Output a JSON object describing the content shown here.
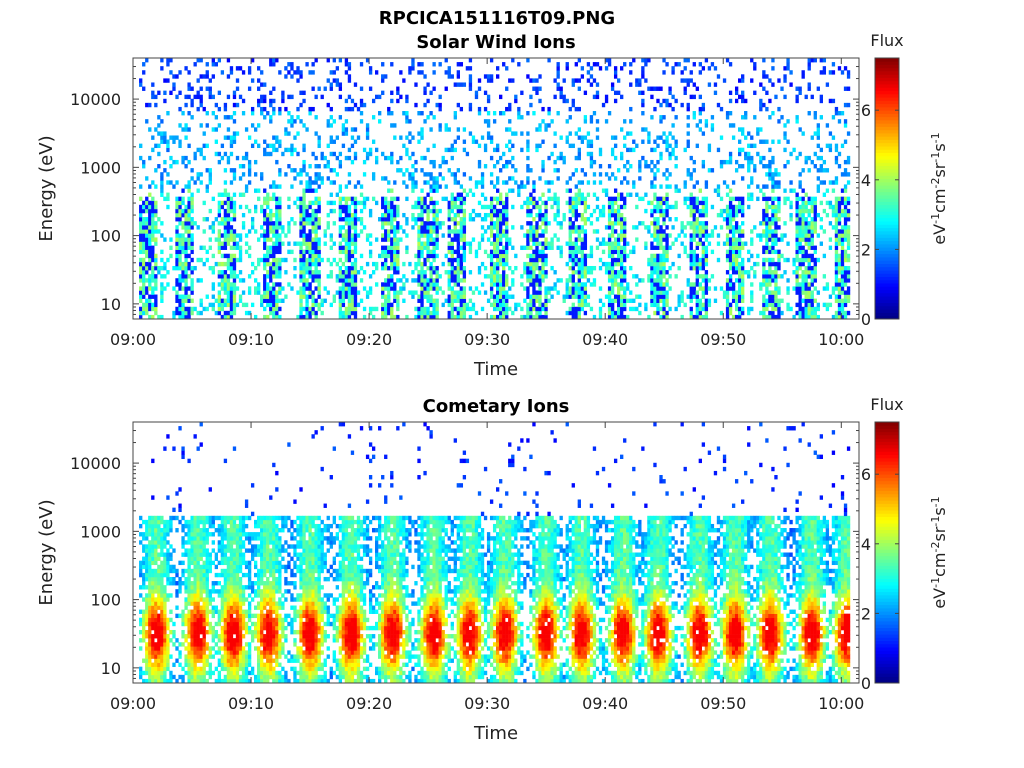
{
  "title": "RPCICA151116T09.PNG",
  "chart_data": [
    {
      "type": "heatmap",
      "title": "Solar Wind Ions",
      "xlabel": "Time",
      "ylabel": "Energy (eV)",
      "x_range": [
        "09:00",
        "10:01"
      ],
      "x_ticks": [
        "09:00",
        "09:10",
        "09:20",
        "09:30",
        "09:40",
        "09:50",
        "10:00"
      ],
      "y_scale": "log",
      "y_range": [
        6,
        40000
      ],
      "y_ticks": [
        "10",
        "100",
        "1000",
        "10000"
      ],
      "colorbar": {
        "title": "Flux",
        "label": "eV-1cm-2sr-1s-1",
        "range": [
          0,
          7.5
        ],
        "ticks": [
          "0",
          "2",
          "4",
          "6"
        ]
      },
      "colormap": "jet",
      "pulse_times_min": [
        1.3,
        4.3,
        8.0,
        11.8,
        15.0,
        18.2,
        21.8,
        25.0,
        27.5,
        31.0,
        34.2,
        37.6,
        41.0,
        44.5,
        48.0,
        51.0,
        54.0,
        57.0,
        60.2
      ],
      "description_values": {
        "background_flux_typical": 1.5,
        "low_energy_pulse_flux": 3.0,
        "max_flux": 3.5
      }
    },
    {
      "type": "heatmap",
      "title": "Cometary Ions",
      "xlabel": "Time",
      "ylabel": "Energy (eV)",
      "x_range": [
        "09:00",
        "10:01"
      ],
      "x_ticks": [
        "09:00",
        "09:10",
        "09:20",
        "09:30",
        "09:40",
        "09:50",
        "10:00"
      ],
      "y_scale": "log",
      "y_range": [
        6,
        40000
      ],
      "y_ticks": [
        "10",
        "100",
        "1000",
        "10000"
      ],
      "colorbar": {
        "title": "Flux",
        "label": "eV-1cm-2sr-1s-1",
        "range": [
          0,
          7.5
        ],
        "ticks": [
          "0",
          "2",
          "4",
          "6"
        ]
      },
      "colormap": "jet",
      "pulse_times_min": [
        2.0,
        5.5,
        8.5,
        11.5,
        15.0,
        18.5,
        22.0,
        25.5,
        28.5,
        31.5,
        35.0,
        38.0,
        41.5,
        44.5,
        48.0,
        51.0,
        54.0,
        57.5,
        60.5
      ],
      "description_values": {
        "peak_flux_near_20eV": 6.0,
        "flux_at_100eV": 3.5,
        "flux_at_500eV": 2.0
      }
    }
  ]
}
